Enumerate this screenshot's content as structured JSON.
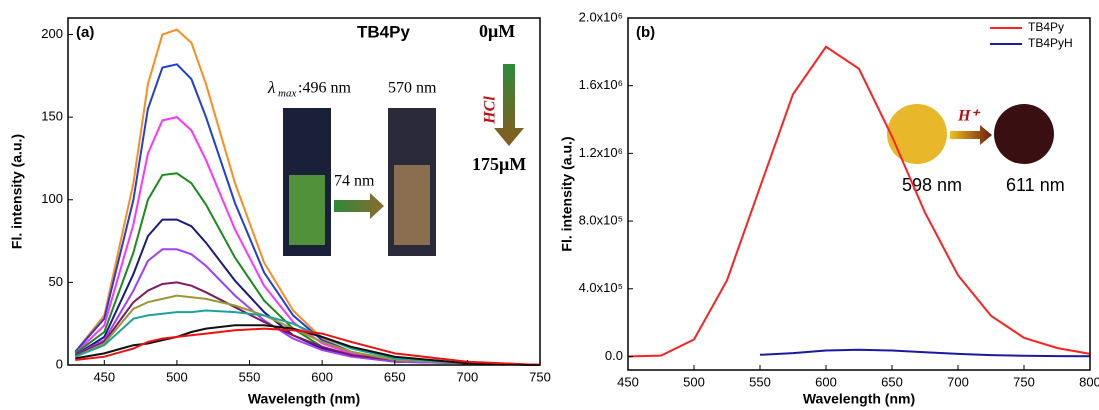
{
  "chart_data": [
    {
      "type": "line",
      "x_label": "Wavelength (nm)",
      "y_label": "Fl. intensity (a.u.)",
      "xlim": [
        425,
        750
      ],
      "ylim": [
        0,
        210
      ],
      "xticks": [
        450,
        500,
        550,
        600,
        650,
        700,
        750
      ],
      "yticks": [
        0,
        50,
        100,
        150,
        200
      ],
      "x": [
        430,
        450,
        470,
        480,
        490,
        500,
        510,
        520,
        540,
        560,
        580,
        600,
        620,
        650,
        700,
        750
      ],
      "series": [
        {
          "color": "#ff8c1a",
          "values": [
            8,
            30,
            110,
            170,
            200,
            203,
            195,
            170,
            110,
            62,
            33,
            16,
            8,
            3,
            1,
            0
          ]
        },
        {
          "color": "#1f3fd8",
          "values": [
            8,
            28,
            100,
            155,
            180,
            182,
            173,
            150,
            98,
            56,
            30,
            15,
            8,
            3,
            1,
            0
          ]
        },
        {
          "color": "#ff33ff",
          "values": [
            7,
            24,
            85,
            128,
            148,
            150,
            142,
            124,
            82,
            48,
            26,
            13,
            7,
            3,
            1,
            0
          ]
        },
        {
          "color": "#1a8c1a",
          "values": [
            7,
            20,
            68,
            100,
            115,
            116,
            110,
            97,
            65,
            39,
            22,
            11,
            6,
            3,
            1,
            0
          ]
        },
        {
          "color": "#1a1a80",
          "values": [
            6,
            17,
            55,
            78,
            88,
            88,
            84,
            74,
            51,
            32,
            18,
            10,
            6,
            2,
            1,
            0
          ]
        },
        {
          "color": "#a040ff",
          "values": [
            6,
            15,
            45,
            63,
            70,
            70,
            67,
            60,
            42,
            27,
            16,
            9,
            5,
            2,
            1,
            0
          ]
        },
        {
          "color": "#801a60",
          "values": [
            6,
            14,
            38,
            45,
            49,
            50,
            48,
            44,
            35,
            26,
            18,
            11,
            6,
            3,
            1,
            0
          ]
        },
        {
          "color": "#999933",
          "values": [
            5,
            13,
            34,
            38,
            40,
            42,
            41,
            40,
            36,
            30,
            22,
            14,
            8,
            3,
            1,
            0
          ]
        },
        {
          "color": "#20a0a0",
          "values": [
            5,
            12,
            28,
            30,
            31,
            32,
            32,
            33,
            32,
            30,
            25,
            17,
            10,
            4,
            1,
            0
          ]
        },
        {
          "color": "#111111",
          "values": [
            4,
            7,
            12,
            13,
            15,
            17,
            20,
            22,
            24,
            24,
            22,
            17,
            11,
            5,
            1,
            0
          ]
        },
        {
          "color": "#ee1111",
          "values": [
            3,
            5,
            10,
            14,
            16,
            17,
            18,
            19,
            21,
            22,
            21,
            19,
            14,
            7,
            2,
            0
          ]
        }
      ],
      "annotations": [
        "(a)",
        "TB4Py",
        "λ",
        "max",
        ":496 nm",
        "570 nm",
        "74 nm",
        "0μM",
        "HCl",
        "175μM"
      ]
    },
    {
      "type": "line",
      "x_label": "Wavelength (nm)",
      "y_label": "Fl. intensity (a.u.)",
      "xlim": [
        450,
        800
      ],
      "ylim": [
        -80000,
        2000000
      ],
      "xticks": [
        450,
        500,
        550,
        600,
        650,
        700,
        750,
        800
      ],
      "yticks": [
        {
          "value": 0,
          "label": "0.0"
        },
        {
          "value": 400000,
          "label": "4.0x10⁵"
        },
        {
          "value": 800000,
          "label": "8.0x10⁵"
        },
        {
          "value": 1200000,
          "label": "1.2x10⁶"
        },
        {
          "value": 1600000,
          "label": "1.6x10⁶"
        },
        {
          "value": 2000000,
          "label": "2.0x10⁶"
        }
      ],
      "legend": "upper right",
      "x": [
        450,
        475,
        500,
        525,
        550,
        575,
        600,
        625,
        650,
        675,
        700,
        725,
        750,
        775,
        800
      ],
      "series": [
        {
          "name": "TB4Py",
          "color": "#ff2020",
          "values": [
            0,
            5000,
            100000,
            450000,
            1000000,
            1550000,
            1830000,
            1700000,
            1300000,
            850000,
            480000,
            240000,
            110000,
            50000,
            15000
          ]
        },
        {
          "name": "TB4PyH",
          "color": "#1a1aa0",
          "values": [
            null,
            null,
            null,
            null,
            10000,
            20000,
            35000,
            40000,
            35000,
            25000,
            15000,
            8000,
            4000,
            2000,
            1000
          ]
        }
      ],
      "annotations": [
        "(b)",
        "H⁺",
        "598 nm",
        "611 nm"
      ]
    }
  ]
}
